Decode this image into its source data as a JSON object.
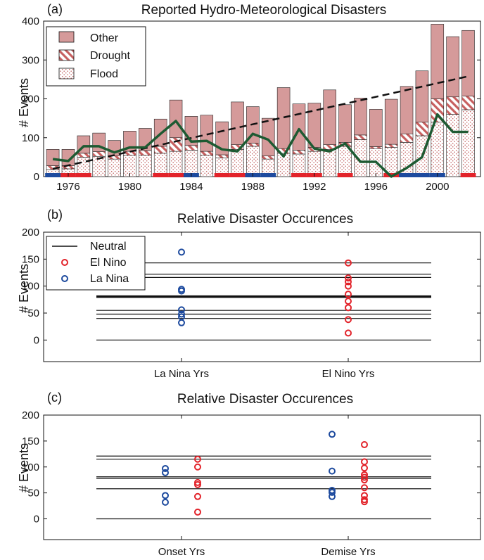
{
  "panels": {
    "a": {
      "label": "(a)",
      "title": "Reported Hydro-Meteorological Disasters"
    },
    "b": {
      "label": "(b)",
      "title": "Relative Disaster Occurences"
    },
    "c": {
      "label": "(c)",
      "title": "Relative Disaster Occurences"
    }
  },
  "colors": {
    "other": "#d59a9a",
    "drought_stripe": "#c75f5f",
    "flood_dots": "#c56a6a",
    "trend_line": "#1e5a32",
    "el_nino": "#e2232a",
    "la_nina": "#1d4a9e"
  },
  "chart_data": [
    {
      "type": "bar",
      "panel": "a",
      "title": "Reported Hydro-Meteorological Disasters",
      "ylabel": "# Events",
      "xlabel": "",
      "ylim": [
        0,
        400
      ],
      "yticks": [
        "0",
        "100",
        "200",
        "300",
        "400"
      ],
      "xticks": [
        "1976",
        "1980",
        "1984",
        "1988",
        "1992",
        "1996",
        "2000"
      ],
      "xtick_years": [
        1976,
        1980,
        1984,
        1988,
        1992,
        1996,
        2000
      ],
      "years": [
        1975,
        1976,
        1977,
        1978,
        1979,
        1980,
        1981,
        1982,
        1983,
        1984,
        1985,
        1986,
        1987,
        1988,
        1989,
        1990,
        1991,
        1992,
        1993,
        1994,
        1995,
        1996,
        1997,
        1998,
        1999,
        2000,
        2001,
        2002
      ],
      "stacked": true,
      "legend_position": "top-left",
      "series": [
        {
          "name": "Flood",
          "values": [
            18,
            20,
            50,
            52,
            45,
            55,
            55,
            60,
            65,
            68,
            55,
            48,
            70,
            78,
            45,
            60,
            58,
            65,
            70,
            78,
            95,
            72,
            75,
            88,
            105,
            140,
            160,
            172
          ]
        },
        {
          "name": "Drought",
          "values": [
            10,
            8,
            10,
            12,
            8,
            10,
            12,
            18,
            35,
            12,
            10,
            8,
            12,
            8,
            8,
            12,
            10,
            10,
            12,
            10,
            12,
            5,
            8,
            22,
            35,
            60,
            45,
            35
          ]
        },
        {
          "name": "Other",
          "values": [
            42,
            42,
            45,
            48,
            40,
            52,
            57,
            70,
            97,
            75,
            93,
            85,
            110,
            94,
            97,
            157,
            119,
            114,
            141,
            97,
            95,
            96,
            116,
            122,
            132,
            192,
            155,
            169
          ]
        }
      ],
      "line": {
        "values": [
          45,
          40,
          78,
          78,
          62,
          75,
          75,
          110,
          143,
          90,
          92,
          70,
          65,
          110,
          95,
          52,
          122,
          72,
          65,
          85,
          38,
          38,
          0,
          22,
          50,
          160,
          115,
          115
        ]
      },
      "trend": {
        "start_year": 1975,
        "start_value": 20,
        "end_year": 2002,
        "end_value": 258
      },
      "enso_bar": {
        "el_nino_years": [
          1976,
          1977,
          1982,
          1983,
          1986,
          1987,
          1991,
          1992,
          1994,
          1997,
          1998,
          2002
        ],
        "la_nina_years": [
          1975,
          1984,
          1988,
          1989,
          1998,
          1999,
          2000
        ]
      }
    },
    {
      "type": "scatter",
      "panel": "b",
      "title": "Relative Disaster Occurences",
      "ylabel": "# Events",
      "ylim": [
        -40,
        200
      ],
      "yticks": [
        "0",
        "50",
        "100",
        "150",
        "200"
      ],
      "categories": [
        "La Nina Yrs",
        "El Nino Yrs"
      ],
      "legend_position": "top-left",
      "reference_lines": {
        "name": "Neutral",
        "values": [
          0,
          40,
          48,
          55,
          80,
          81,
          116,
          122,
          143
        ],
        "bold_value": 80.5
      },
      "series": [
        {
          "name": "El Nino",
          "category": "El Nino Yrs",
          "values": [
            143,
            115,
            108,
            100,
            85,
            72,
            60,
            38,
            13
          ]
        },
        {
          "name": "La Nina",
          "category": "La Nina Yrs",
          "values": [
            163,
            94,
            91,
            56,
            48,
            43,
            32
          ]
        }
      ]
    },
    {
      "type": "scatter",
      "panel": "c",
      "title": "Relative Disaster Occurences",
      "ylabel": "# Events",
      "ylim": [
        -40,
        200
      ],
      "yticks": [
        "0",
        "50",
        "100",
        "150",
        "200"
      ],
      "categories": [
        "Onset Yrs",
        "Demise Yrs"
      ],
      "reference_lines": {
        "values": [
          0,
          58,
          78,
          81,
          115,
          121
        ]
      },
      "series": [
        {
          "name": "El Nino",
          "groups": [
            {
              "category": "Onset Yrs",
              "values": [
                115,
                100,
                70,
                66,
                43,
                13
              ]
            },
            {
              "category": "Demise Yrs",
              "values": [
                143,
                110,
                98,
                85,
                80,
                75,
                60,
                45,
                37,
                33
              ]
            }
          ]
        },
        {
          "name": "La Nina",
          "groups": [
            {
              "category": "Onset Yrs",
              "values": [
                97,
                89,
                45,
                32
              ]
            },
            {
              "category": "Demise Yrs",
              "values": [
                163,
                92,
                55,
                51,
                43
              ]
            }
          ]
        }
      ]
    }
  ]
}
